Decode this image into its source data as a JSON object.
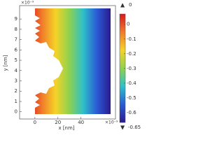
{
  "chart_data": {
    "type": "surface",
    "xlabel": "x [nm]",
    "ylabel": "y [nm]",
    "x_multiplier": "×10⁻⁹",
    "y_multiplier": "×10⁻⁹",
    "xlim": [
      -13.3,
      70
    ],
    "ylim": [
      -0.7,
      10.3
    ],
    "xticks": [
      0,
      20,
      40
    ],
    "yticks": [
      0,
      1,
      2,
      3,
      4,
      5,
      6,
      7,
      8,
      9
    ],
    "colormap": [
      "#d7191c",
      "#f07a2a",
      "#f5d327",
      "#8fd14f",
      "#2fc0c8",
      "#2a5bd6",
      "#2b1a8f"
    ],
    "clim": [
      -0.667,
      0.07
    ],
    "cticks": [
      0,
      -0.1,
      -0.2,
      -0.3,
      -0.4,
      -0.5,
      -0.6
    ],
    "max": 0,
    "min": -0.65
  }
}
